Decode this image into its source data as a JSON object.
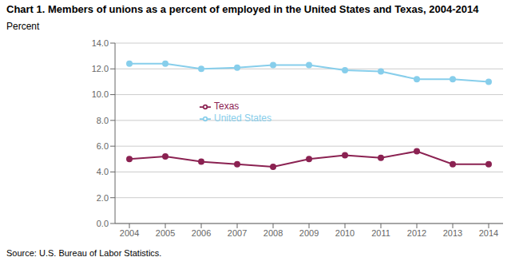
{
  "chart_data": {
    "type": "line",
    "title": "Chart 1. Members of unions as a percent of employed in the United States and Texas, 2004-2014",
    "y_label": "Percent",
    "source": "Source: U.S. Bureau of Labor Statistics.",
    "x": [
      2004,
      2005,
      2006,
      2007,
      2008,
      2009,
      2010,
      2011,
      2012,
      2013,
      2014
    ],
    "series": [
      {
        "name": "United States",
        "color": "#87CEEB",
        "marker": "circle",
        "values": [
          12.4,
          12.4,
          12.0,
          12.1,
          12.3,
          12.3,
          11.9,
          11.8,
          11.2,
          11.2,
          11.0
        ]
      },
      {
        "name": "Texas",
        "color": "#8B2252",
        "marker": "circle",
        "values": [
          5.0,
          5.2,
          4.8,
          4.6,
          4.4,
          5.0,
          5.3,
          5.1,
          5.6,
          4.6,
          4.6
        ]
      }
    ],
    "xlim": [
      2003.6,
      2014.4
    ],
    "xticks": [
      2004,
      2005,
      2006,
      2007,
      2008,
      2009,
      2010,
      2011,
      2012,
      2013,
      2014
    ],
    "ylim": [
      0,
      14.0
    ],
    "yticks": [
      {
        "value": 0,
        "label": "0.0"
      },
      {
        "value": 2,
        "label": "2.0"
      },
      {
        "value": 4,
        "label": "4.0"
      },
      {
        "value": 6,
        "label": "6.0"
      },
      {
        "value": 8,
        "label": "8.0"
      },
      {
        "value": 10,
        "label": "10.0"
      },
      {
        "value": 12,
        "label": "12.0"
      },
      {
        "value": 14,
        "label": "14.0"
      }
    ],
    "grid": true,
    "legend": "center"
  }
}
